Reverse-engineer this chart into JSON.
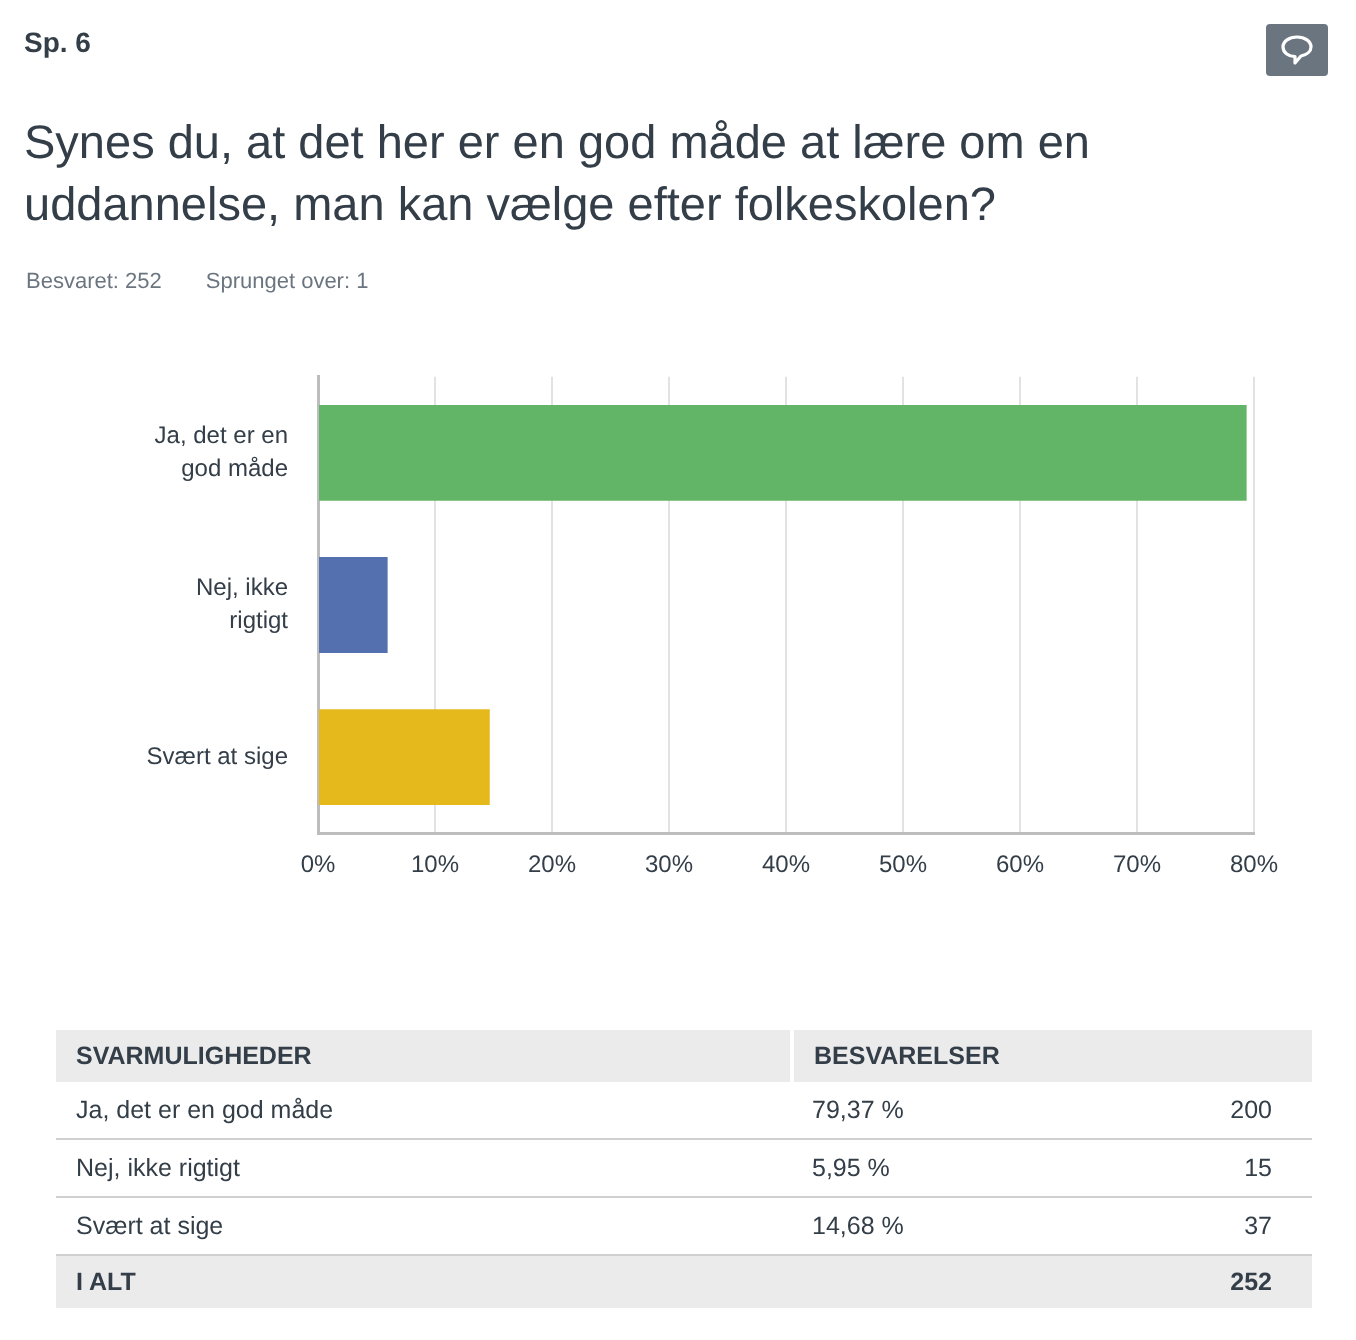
{
  "chart_data": {
    "type": "bar",
    "orientation": "horizontal",
    "title": "Synes du, at det her er en god måde at lære om en uddannelse, man kan vælge efter folkeskolen?",
    "annotations": [
      "Sp. 6",
      "Besvaret: 252",
      "Sprunget over: 1",
      "SVARMULIGHEDER",
      "BESVARELSER",
      "79,37 %",
      "200",
      "5,95 %",
      "15",
      "14,68 %",
      "37",
      "I ALT",
      "252"
    ],
    "categories": [
      "Ja, det er en god måde",
      "Nej, ikke rigtigt",
      "Svært at sige"
    ],
    "values": [
      79.37,
      5.95,
      14.68
    ],
    "colors": [
      "#62b466",
      "#5470ae",
      "#e5b91c"
    ],
    "xlim": [
      0,
      80
    ],
    "xticks": [
      {
        "value": 0,
        "label": "0%"
      },
      {
        "value": 10,
        "label": "10%"
      },
      {
        "value": 20,
        "label": "20%"
      },
      {
        "value": 30,
        "label": "30%"
      },
      {
        "value": 40,
        "label": "40%"
      },
      {
        "value": 50,
        "label": "50%"
      },
      {
        "value": 60,
        "label": "60%"
      },
      {
        "value": 70,
        "label": "70%"
      },
      {
        "value": 80,
        "label": "80%"
      }
    ],
    "grid": "x",
    "legend": false
  }
}
